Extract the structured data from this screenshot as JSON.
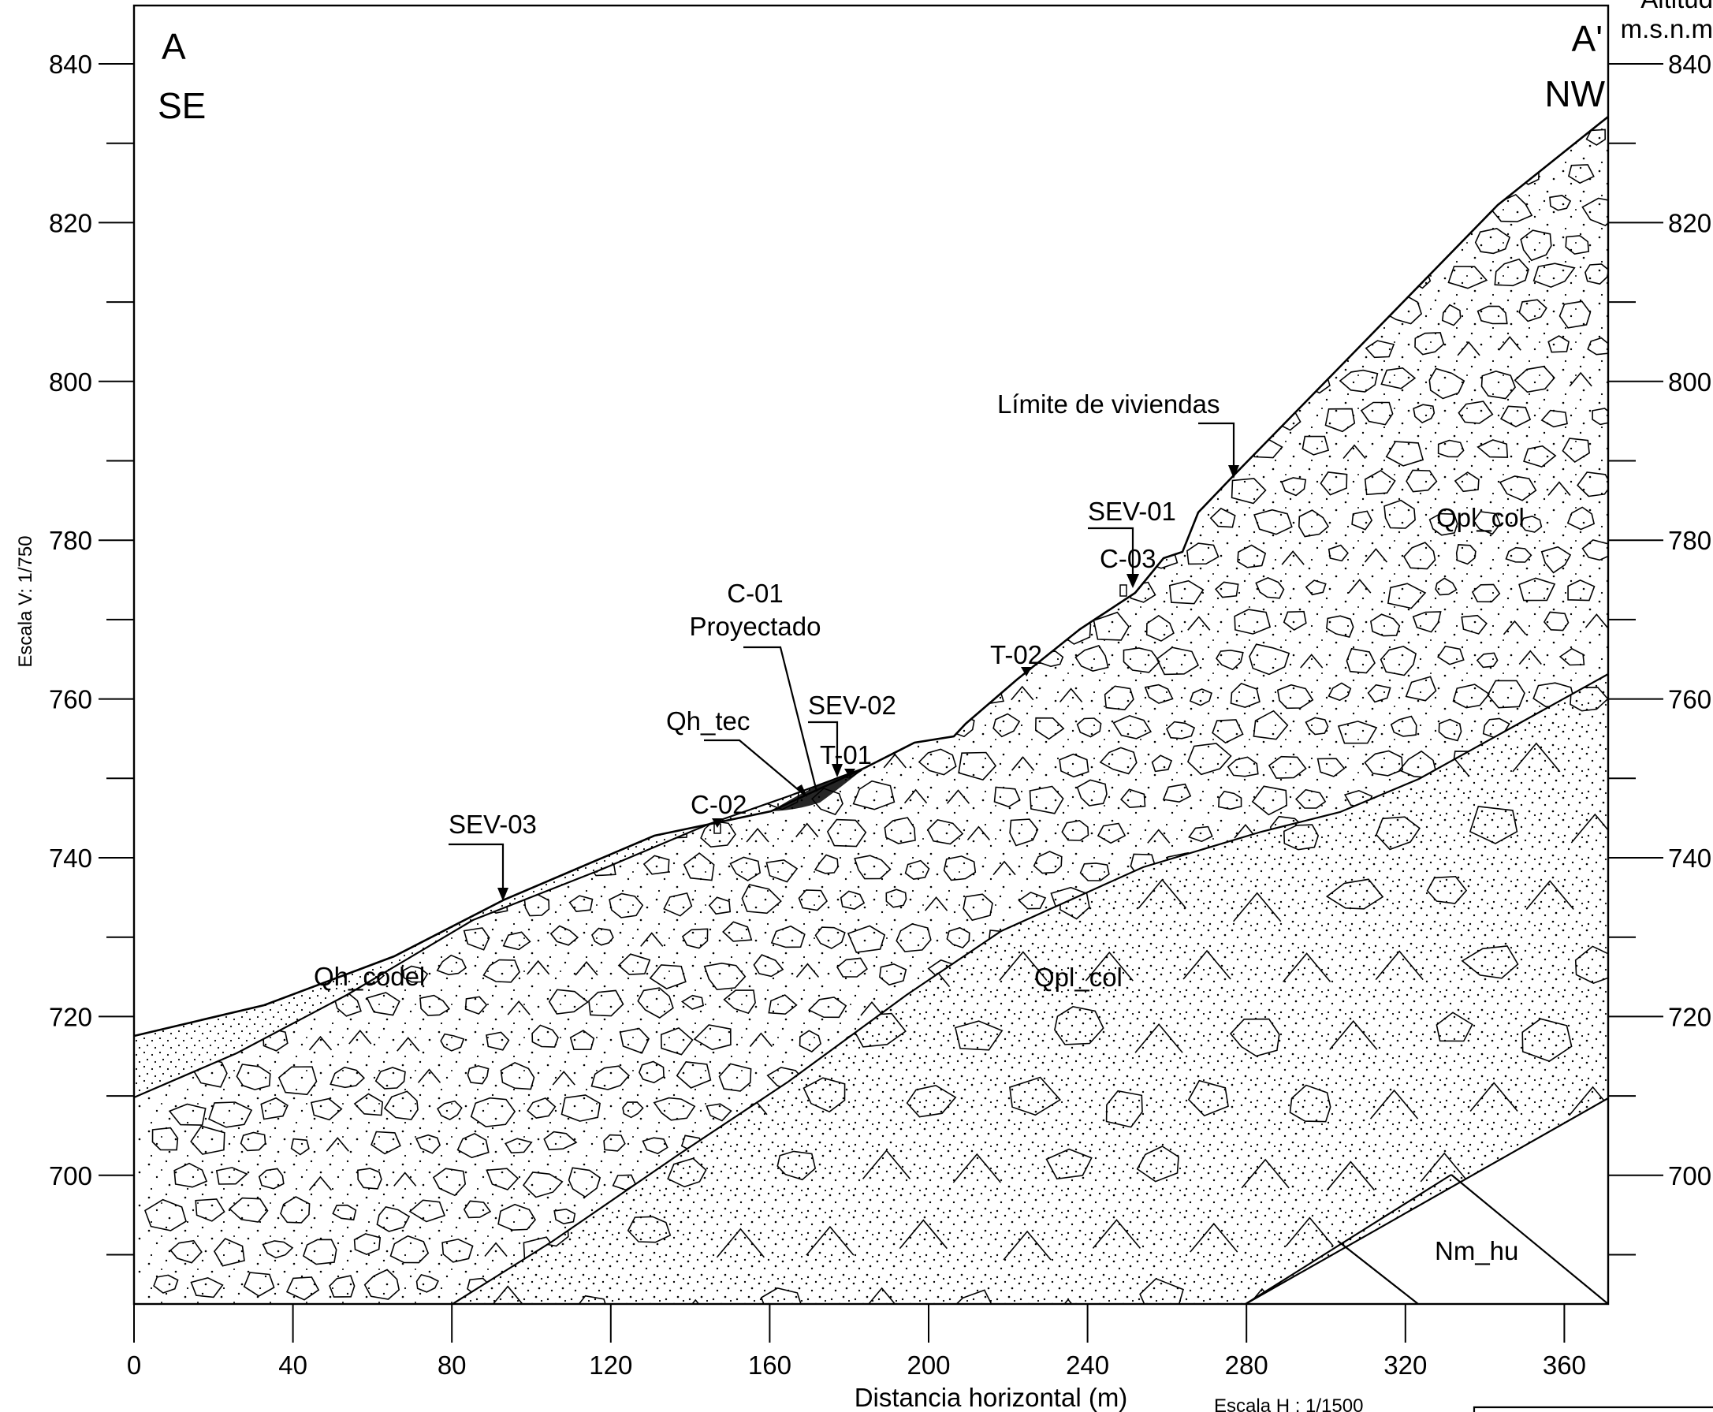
{
  "section": {
    "start_label": "A",
    "start_direction": "SE",
    "end_label": "A'",
    "end_direction": "NW",
    "altitude_header_line1": "Altitud",
    "altitude_header_line2": "m.s.n.m",
    "vertical_scale": "Escala V: 1/750",
    "horizontal_scale": "Escala H : 1/1500",
    "x_axis_title": "Distancia horizontal (m)",
    "x_ticks": [
      "0",
      "40",
      "80",
      "120",
      "160",
      "200",
      "240",
      "280",
      "320",
      "360"
    ],
    "y_ticks_left": [
      "840",
      "820",
      "800",
      "780",
      "760",
      "740",
      "720",
      "700"
    ],
    "y_ticks_right": [
      "840",
      "820",
      "800",
      "780",
      "760",
      "740",
      "720",
      "700"
    ]
  },
  "annotations": {
    "limite_viviendas": "Límite de viviendas",
    "sev01": "SEV-01",
    "c03": "C-03",
    "c01_line1": "C-01",
    "c01_line2": "Proyectado",
    "t02": "T-02",
    "sev02": "SEV-02",
    "qh_tec": "Qh_tec",
    "t01": "T-01",
    "c02": "C-02",
    "sev03": "SEV-03"
  },
  "units": {
    "qh_codel": "Qh_codel",
    "qpl_col_lower": "Qpl_col",
    "qpl_col_upper": "Qpl_col",
    "nm_hu": "Nm_hu"
  }
}
